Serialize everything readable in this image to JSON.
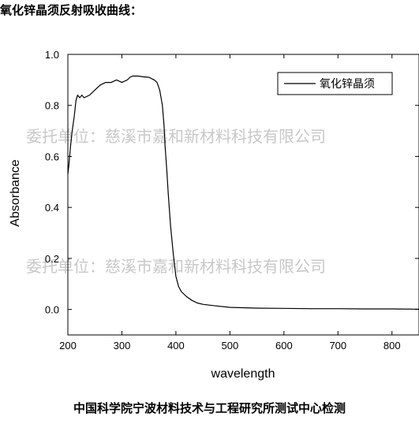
{
  "heading": "氧化锌晶须反射吸收曲线：",
  "footer": "中国科学院宁波材料技术与工程研究所测试中心检测",
  "watermark": "委托单位：慈溪市嘉和新材料科技有限公司",
  "colors": {
    "line": "#000000",
    "watermark": "#c8c8c8"
  },
  "chart_data": {
    "type": "line",
    "xlabel": "wavelength",
    "ylabel": "Absorbance",
    "xlim": [
      200,
      850
    ],
    "ylim": [
      -0.1,
      1.0
    ],
    "xticks": [
      200,
      300,
      400,
      500,
      600,
      700,
      800
    ],
    "yticks": [
      0.0,
      0.2,
      0.4,
      0.6,
      0.8,
      1.0
    ],
    "xtick_labels": [
      "200",
      "300",
      "400",
      "500",
      "600",
      "700",
      "800"
    ],
    "ytick_labels": [
      "0.0",
      "0.2",
      "0.4",
      "0.6",
      "0.8",
      "1.0"
    ],
    "grid": false,
    "legend_position": "top-right",
    "series": [
      {
        "name": "氧化锌晶须",
        "x": [
          200,
          202,
          205,
          208,
          212,
          215,
          218,
          222,
          226,
          230,
          240,
          250,
          260,
          270,
          280,
          290,
          300,
          310,
          315,
          320,
          330,
          340,
          350,
          360,
          365,
          370,
          375,
          378,
          380,
          383,
          386,
          390,
          395,
          400,
          405,
          410,
          420,
          430,
          440,
          450,
          470,
          500,
          550,
          600,
          650,
          700,
          750,
          800,
          850
        ],
        "y": [
          0.53,
          0.57,
          0.64,
          0.7,
          0.76,
          0.82,
          0.84,
          0.83,
          0.84,
          0.83,
          0.84,
          0.86,
          0.88,
          0.89,
          0.89,
          0.9,
          0.89,
          0.9,
          0.91,
          0.915,
          0.915,
          0.912,
          0.91,
          0.9,
          0.89,
          0.86,
          0.8,
          0.72,
          0.64,
          0.55,
          0.45,
          0.33,
          0.22,
          0.13,
          0.09,
          0.07,
          0.05,
          0.035,
          0.025,
          0.02,
          0.015,
          0.008,
          0.005,
          0.004,
          0.003,
          0.003,
          0.002,
          0.002,
          0.001
        ]
      }
    ]
  }
}
